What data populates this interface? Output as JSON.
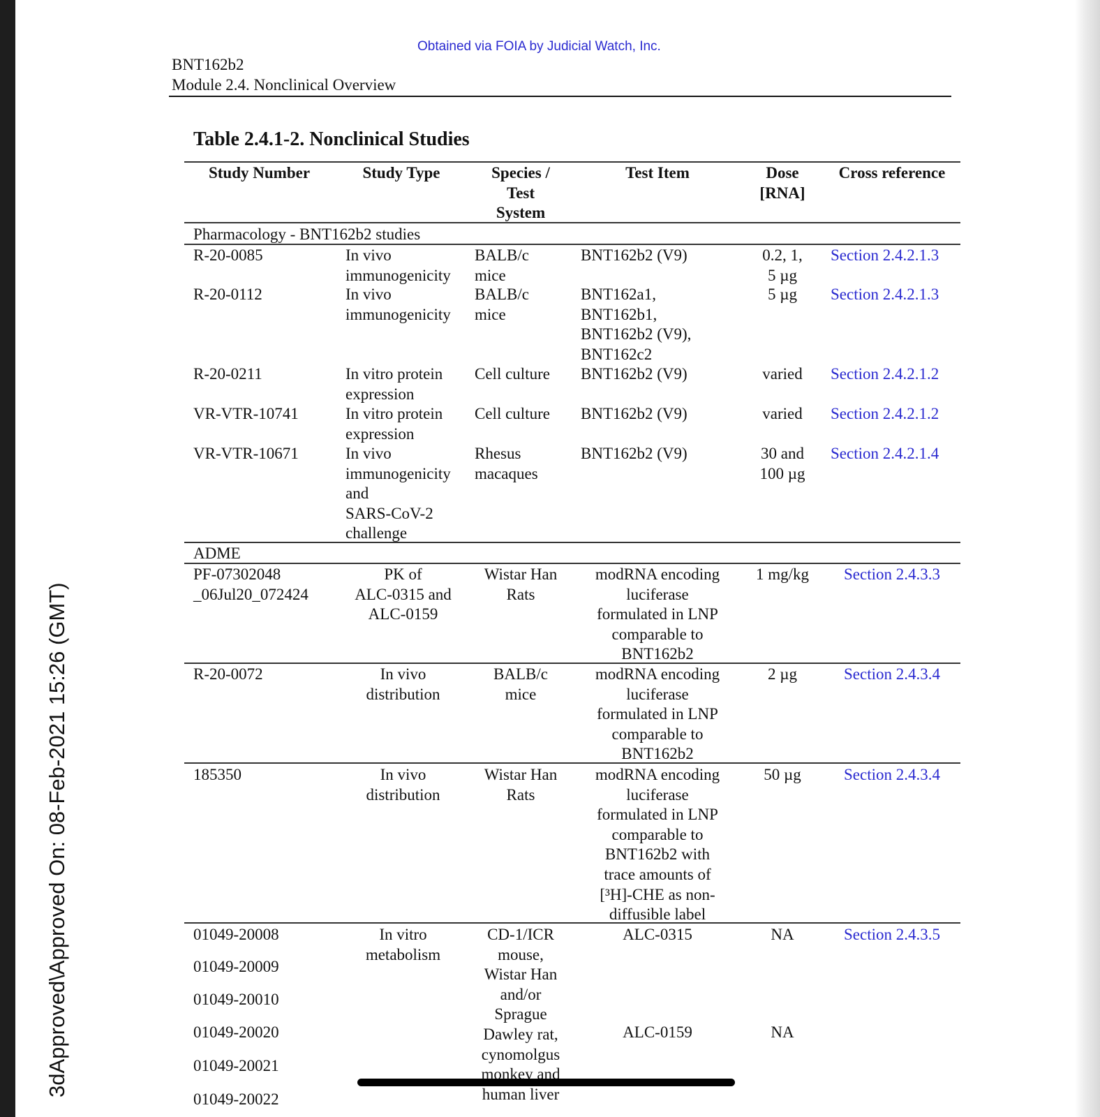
{
  "watermark": "Obtained via FOIA by Judicial Watch, Inc.",
  "header": {
    "product": "BNT162b2",
    "module": "Module 2.4. Nonclinical Overview"
  },
  "side_stamp": "3dApproved\\Approved On: 08-Feb-2021 15:26 (GMT)",
  "table": {
    "title": "Table 2.4.1-2.  Nonclinical Studies",
    "columns": [
      "Study Number",
      "Study Type",
      "Species /\nTest\nSystem",
      "Test Item",
      "Dose\n[RNA]",
      "Cross reference"
    ],
    "sections": [
      {
        "label": "Pharmacology - BNT162b2 studies",
        "rows": [
          {
            "study": "R-20-0085",
            "type": "In vivo\nimmunogenicity",
            "species": "BALB/c\nmice",
            "item": "BNT162b2 (V9)",
            "dose": "0.2, 1,\n5 µg",
            "ref": "Section 2.4.2.1.3"
          },
          {
            "study": "R-20-0112",
            "type": "In vivo\nimmunogenicity",
            "species": "BALB/c\nmice",
            "item": "BNT162a1,\nBNT162b1,\nBNT162b2 (V9),\nBNT162c2",
            "dose": "5 µg",
            "ref": "Section 2.4.2.1.3"
          },
          {
            "study": "R-20-0211",
            "type": "In vitro protein\nexpression",
            "species": "Cell culture",
            "item": "BNT162b2 (V9)",
            "dose": "varied",
            "ref": "Section 2.4.2.1.2"
          },
          {
            "study": "VR-VTR-10741",
            "type": "In vitro protein\nexpression",
            "species": "Cell culture",
            "item": "BNT162b2 (V9)",
            "dose": "varied",
            "ref": "Section 2.4.2.1.2"
          },
          {
            "study": "VR-VTR-10671",
            "type": "In vivo\nimmunogenicity\nand\nSARS-CoV-2\nchallenge",
            "species": "Rhesus\nmacaques",
            "item": "BNT162b2 (V9)",
            "dose": "30 and\n100 µg",
            "ref": "Section 2.4.2.1.4"
          }
        ]
      },
      {
        "label": "ADME",
        "rows": [
          {
            "study": "PF-07302048\n_06Jul20_072424",
            "type": "PK of\nALC-0315 and\nALC-0159",
            "species": "Wistar Han\nRats",
            "item": "modRNA encoding\nluciferase\nformulated in LNP\ncomparable to\nBNT162b2",
            "dose": "1 mg/kg",
            "ref": "Section 2.4.3.3"
          },
          {
            "study": "R-20-0072",
            "type": "In vivo\ndistribution",
            "species": "BALB/c\nmice",
            "item": "modRNA encoding\nluciferase\nformulated in LNP\ncomparable to\nBNT162b2",
            "dose": "2 µg",
            "ref": "Section 2.4.3.4"
          },
          {
            "study": "185350",
            "type": "In vivo\ndistribution",
            "species": "Wistar Han\nRats",
            "item": "modRNA encoding\nluciferase\nformulated in LNP\ncomparable to\nBNT162b2 with\ntrace amounts of\n[³H]-CHE as non-\ndiffusible label",
            "dose": "50 µg",
            "ref": "Section 2.4.3.4"
          }
        ]
      }
    ],
    "metabolism": {
      "studies": [
        "01049-20008",
        "01049-20009",
        "01049-20010",
        "01049-20020",
        "01049-20021",
        "01049-20022"
      ],
      "type": "In vitro\nmetabolism",
      "species": "CD-1/ICR\nmouse,\nWistar Han\nand/or\nSprague\nDawley rat,\ncynomolgus\nmonkey and\nhuman liver",
      "items": [
        "ALC-0315",
        "ALC-0159"
      ],
      "doses": [
        "NA",
        "NA"
      ],
      "ref": "Section 2.4.3.5"
    }
  }
}
